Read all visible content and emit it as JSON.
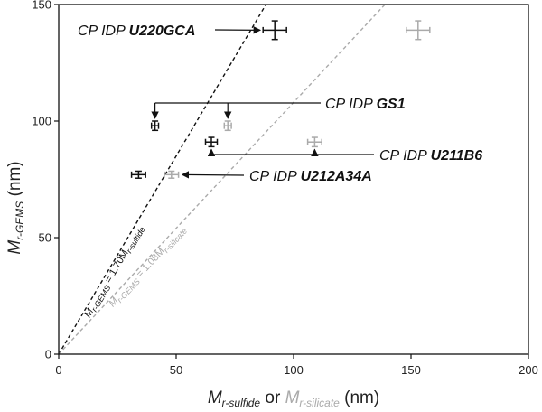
{
  "chart_data": {
    "type": "scatter",
    "xlim": [
      0,
      200
    ],
    "ylim": [
      0,
      150
    ],
    "x_ticks": [
      "0",
      "50",
      "100",
      "150",
      "200"
    ],
    "y_ticks": [
      "0",
      "50",
      "100",
      "150"
    ],
    "xlabel": {
      "m1": "M",
      "s1": "r-sulfide",
      "or": " or ",
      "m2": "M",
      "s2": "r-silicate",
      "unit": " (nm)"
    },
    "ylabel": {
      "m": "M",
      "s": "r-GEMS",
      "unit": " (nm)"
    },
    "grid": false,
    "colors": {
      "sulfide": "#111111",
      "silicate": "#aaaaaa"
    },
    "series": [
      {
        "kind": "sulfide",
        "points": [
          {
            "x": 92,
            "y": 139,
            "xerr": 5,
            "yerr": 4
          },
          {
            "x": 41,
            "y": 98,
            "xerr": 1.5,
            "yerr": 2
          },
          {
            "x": 65,
            "y": 91,
            "xerr": 2.5,
            "yerr": 2
          },
          {
            "x": 34,
            "y": 77,
            "xerr": 3,
            "yerr": 1.5
          }
        ]
      },
      {
        "kind": "silicate",
        "points": [
          {
            "x": 153,
            "y": 139,
            "xerr": 5,
            "yerr": 4
          },
          {
            "x": 72,
            "y": 98,
            "xerr": 1.5,
            "yerr": 2
          },
          {
            "x": 109,
            "y": 91,
            "xerr": 3,
            "yerr": 2
          },
          {
            "x": 48,
            "y": 77,
            "xerr": 3,
            "yerr": 1.5
          }
        ]
      }
    ],
    "fit_lines": [
      {
        "kind": "sulfide",
        "slope": 1.7,
        "label_pre": "M",
        "label_sub1": "r-GEMS",
        "label_mid": " = 1.70M",
        "label_sub2": "r-sulfide"
      },
      {
        "kind": "silicate",
        "slope": 1.08,
        "label_pre": "M",
        "label_sub1": "r-GEMS",
        "label_mid": " = 1.08M",
        "label_sub2": "r-silicate"
      }
    ],
    "annotations": [
      {
        "prefix": "CP IDP ",
        "name": "U220GCA"
      },
      {
        "prefix": "CP IDP ",
        "name": "GS1"
      },
      {
        "prefix": "CP IDP ",
        "name": "U211B6"
      },
      {
        "prefix": "CP IDP ",
        "name": "U212A34A"
      }
    ]
  }
}
